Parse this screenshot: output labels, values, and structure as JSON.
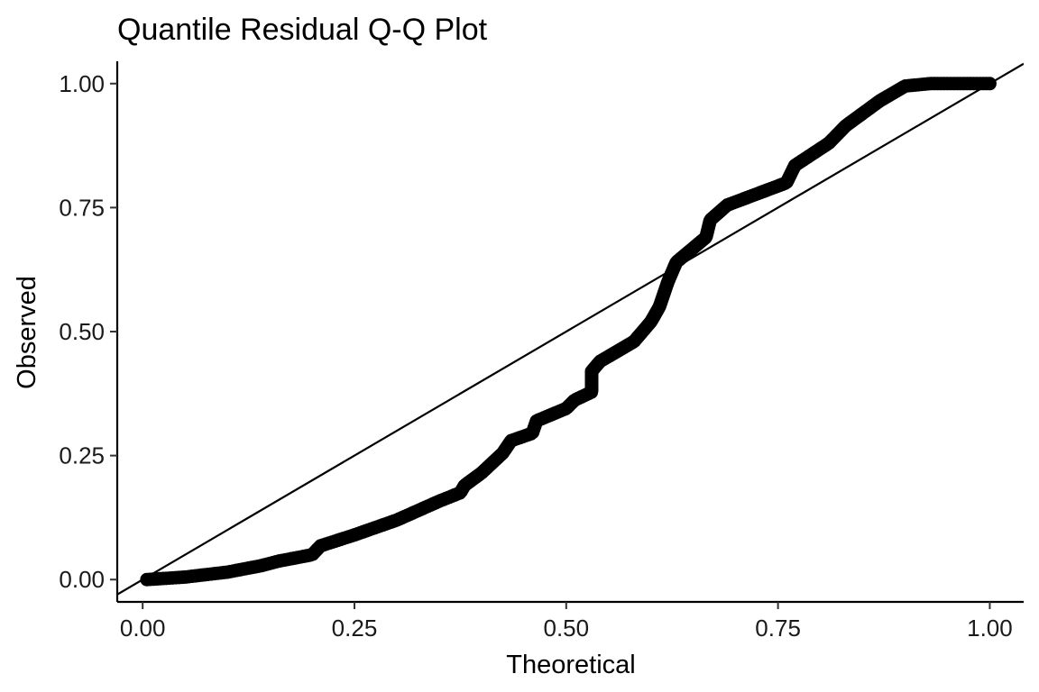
{
  "chart_data": {
    "type": "scatter",
    "title": "Quantile Residual Q-Q Plot",
    "xlabel": "Theoretical",
    "ylabel": "Observed",
    "xlim": [
      -0.03,
      1.04
    ],
    "ylim": [
      -0.045,
      1.045
    ],
    "xticks": [
      0,
      0.25,
      0.5,
      0.75,
      1.0
    ],
    "xtick_labels": [
      "0.00",
      "0.25",
      "0.50",
      "0.75",
      "1.00"
    ],
    "yticks": [
      0,
      0.25,
      0.5,
      0.75,
      1.0
    ],
    "ytick_labels": [
      "0.00",
      "0.25",
      "0.50",
      "0.75",
      "1.00"
    ],
    "grid": false,
    "legend": "none",
    "reference_line": {
      "slope": 1,
      "intercept": 0
    },
    "point_color": "#000000",
    "line_color": "#000000",
    "curve_points": [
      [
        0.005,
        0.0
      ],
      [
        0.05,
        0.005
      ],
      [
        0.1,
        0.015
      ],
      [
        0.14,
        0.028
      ],
      [
        0.16,
        0.037
      ],
      [
        0.2,
        0.05
      ],
      [
        0.21,
        0.068
      ],
      [
        0.25,
        0.09
      ],
      [
        0.3,
        0.12
      ],
      [
        0.35,
        0.158
      ],
      [
        0.375,
        0.175
      ],
      [
        0.38,
        0.19
      ],
      [
        0.4,
        0.215
      ],
      [
        0.425,
        0.255
      ],
      [
        0.435,
        0.28
      ],
      [
        0.46,
        0.295
      ],
      [
        0.465,
        0.32
      ],
      [
        0.5,
        0.345
      ],
      [
        0.51,
        0.362
      ],
      [
        0.53,
        0.378
      ],
      [
        0.53,
        0.42
      ],
      [
        0.54,
        0.44
      ],
      [
        0.58,
        0.48
      ],
      [
        0.6,
        0.52
      ],
      [
        0.61,
        0.55
      ],
      [
        0.62,
        0.6
      ],
      [
        0.63,
        0.64
      ],
      [
        0.665,
        0.69
      ],
      [
        0.67,
        0.725
      ],
      [
        0.69,
        0.755
      ],
      [
        0.76,
        0.8
      ],
      [
        0.77,
        0.835
      ],
      [
        0.81,
        0.88
      ],
      [
        0.83,
        0.915
      ],
      [
        0.87,
        0.965
      ],
      [
        0.9,
        0.995
      ],
      [
        0.93,
        1.0
      ],
      [
        1.0,
        1.0
      ]
    ],
    "n_points": 400
  }
}
